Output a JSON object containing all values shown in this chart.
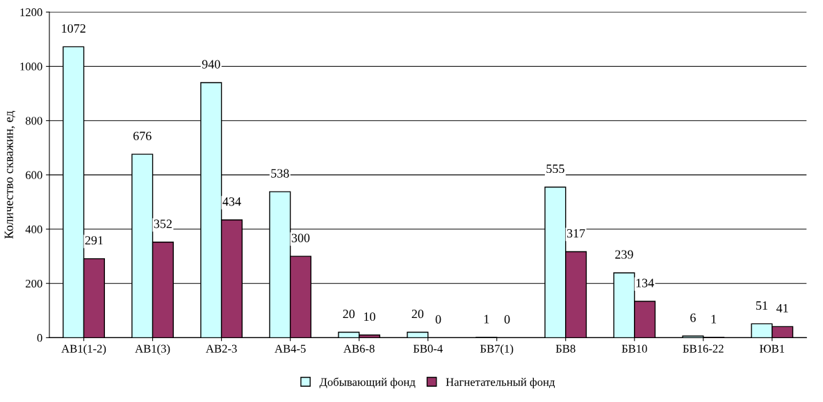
{
  "chart_data": {
    "type": "bar",
    "ylabel": "Количество скважин, ед",
    "categories": [
      "АВ1(1-2)",
      "АВ1(3)",
      "АВ2-3",
      "АВ4-5",
      "АВ6-8",
      "БВ0-4",
      "БВ7(1)",
      "БВ8",
      "БВ10",
      "БВ16-22",
      "ЮВ1"
    ],
    "series": [
      {
        "name": "Добывающий фонд",
        "color": "#ccffff",
        "values": [
          1072,
          676,
          940,
          538,
          20,
          20,
          1,
          555,
          239,
          6,
          51
        ]
      },
      {
        "name": "Нагнетательный фонд",
        "color": "#993366",
        "values": [
          291,
          352,
          434,
          300,
          10,
          0,
          0,
          317,
          134,
          1,
          41
        ]
      }
    ],
    "ylim": [
      0,
      1200
    ],
    "yticks": [
      0,
      200,
      400,
      600,
      800,
      1000,
      1200
    ],
    "grid": "y",
    "legend": "bottom",
    "data_labels": true
  }
}
